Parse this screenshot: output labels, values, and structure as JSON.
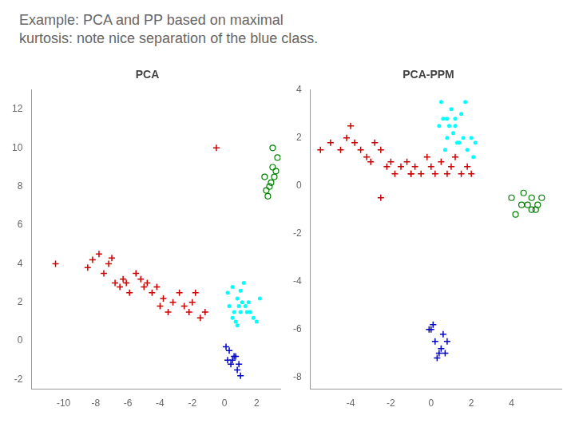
{
  "title": "Example: PCA and PP based on maximal\nkurtosis: note nice separation of the blue class.",
  "chart_data": [
    {
      "type": "scatter",
      "title": "PCA",
      "grid": false,
      "xlim": [
        -12,
        3.5
      ],
      "ylim": [
        -2.5,
        13
      ],
      "xticks": [
        -10,
        -8,
        -6,
        -4,
        -2,
        0,
        2
      ],
      "yticks": [
        -2,
        0,
        2,
        4,
        6,
        8,
        10,
        12
      ],
      "series": [
        {
          "color": "#cc0000",
          "marker": "plus",
          "x": [
            -10.5,
            -8.5,
            -8.2,
            -7.8,
            -7.5,
            -7.2,
            -7.0,
            -6.8,
            -6.5,
            -6.3,
            -6.1,
            -5.9,
            -5.5,
            -5.2,
            -5.0,
            -4.8,
            -4.5,
            -4.2,
            -4.0,
            -3.8,
            -3.5,
            -3.2,
            -2.8,
            -2.5,
            -2.2,
            -2.0,
            -1.8,
            -1.5,
            -1.2,
            -0.5
          ],
          "values": [
            4.0,
            3.8,
            4.2,
            4.5,
            3.5,
            4.0,
            4.3,
            3.0,
            2.8,
            3.2,
            3.0,
            2.5,
            3.5,
            3.2,
            2.8,
            3.0,
            2.5,
            2.8,
            1.8,
            2.2,
            1.5,
            2.0,
            2.5,
            1.8,
            1.5,
            2.0,
            2.5,
            1.2,
            1.5,
            10.0
          ]
        },
        {
          "color": "cyan",
          "marker": "point",
          "x": [
            0.2,
            0.5,
            0.8,
            1.0,
            1.2,
            1.5,
            0.3,
            0.6,
            0.9,
            1.1,
            1.4,
            1.8,
            2.2,
            0.7,
            1.0,
            1.3,
            0.5,
            0.8,
            1.6,
            2.0
          ],
          "values": [
            2.5,
            2.8,
            2.2,
            2.6,
            3.0,
            2.0,
            1.8,
            1.5,
            1.8,
            2.0,
            1.5,
            1.2,
            2.2,
            1.0,
            1.5,
            1.8,
            1.2,
            0.8,
            1.5,
            1.0
          ]
        },
        {
          "color": "#0000cc",
          "marker": "plus",
          "x": [
            0.2,
            0.4,
            0.6,
            0.8,
            1.0,
            0.3,
            0.5,
            0.7,
            0.9,
            0.1
          ],
          "values": [
            -1.0,
            -1.2,
            -0.8,
            -1.5,
            -1.8,
            -0.5,
            -1.0,
            -0.8,
            -1.2,
            -0.3
          ]
        },
        {
          "color": "green",
          "marker": "open_circle",
          "x": [
            2.5,
            2.8,
            3.0,
            3.2,
            2.7,
            2.9,
            3.1,
            2.6,
            3.0,
            3.3
          ],
          "values": [
            8.5,
            8.0,
            9.0,
            8.8,
            7.5,
            8.2,
            8.5,
            7.8,
            10.0,
            9.5
          ]
        }
      ]
    },
    {
      "type": "scatter",
      "title": "PCA-PPM",
      "grid": false,
      "xlim": [
        -6,
        6.5
      ],
      "ylim": [
        -8.5,
        4
      ],
      "xticks": [
        -4,
        -2,
        0,
        2,
        4
      ],
      "yticks": [
        -8,
        -6,
        -4,
        -2,
        0,
        2,
        4
      ],
      "series": [
        {
          "color": "#cc0000",
          "marker": "plus",
          "x": [
            -5.5,
            -5.0,
            -4.5,
            -4.0,
            -3.8,
            -3.5,
            -3.2,
            -3.0,
            -2.8,
            -2.5,
            -2.2,
            -2.0,
            -1.8,
            -1.5,
            -1.2,
            -1.0,
            -0.8,
            -0.5,
            -0.2,
            0.0,
            0.2,
            0.5,
            0.8,
            1.0,
            1.2,
            1.5,
            1.8,
            2.0,
            -4.2,
            -2.5,
            -1.0
          ],
          "values": [
            1.5,
            1.8,
            1.5,
            2.5,
            1.8,
            1.5,
            1.2,
            1.0,
            1.8,
            1.5,
            0.8,
            1.0,
            0.5,
            0.8,
            1.0,
            0.5,
            0.8,
            0.5,
            1.2,
            0.8,
            0.5,
            1.0,
            0.5,
            0.8,
            1.2,
            0.5,
            0.8,
            0.5,
            2.0,
            -0.5,
            0.5
          ]
        },
        {
          "color": "cyan",
          "marker": "point",
          "x": [
            0.5,
            0.8,
            1.0,
            1.2,
            1.5,
            0.6,
            0.9,
            1.1,
            1.4,
            1.8,
            2.0,
            0.7,
            1.2,
            1.6,
            2.2,
            0.4,
            0.8,
            1.3,
            1.7,
            2.1
          ],
          "values": [
            3.5,
            2.8,
            3.2,
            2.5,
            3.0,
            2.8,
            2.5,
            2.2,
            1.8,
            1.5,
            2.0,
            1.5,
            2.8,
            2.0,
            1.8,
            2.5,
            2.0,
            1.8,
            3.5,
            1.2
          ]
        },
        {
          "color": "#0000cc",
          "marker": "plus",
          "x": [
            0.0,
            0.2,
            0.4,
            0.5,
            0.6,
            0.8,
            0.3,
            0.1,
            0.7,
            -0.1
          ],
          "values": [
            -6.0,
            -6.5,
            -7.0,
            -6.8,
            -6.2,
            -6.5,
            -7.2,
            -5.8,
            -7.0,
            -6.0
          ]
        },
        {
          "color": "green",
          "marker": "open_circle",
          "x": [
            4.0,
            4.5,
            5.0,
            5.2,
            4.8,
            5.5,
            4.2,
            5.0,
            4.6,
            5.3
          ],
          "values": [
            -0.5,
            -0.8,
            -0.5,
            -1.0,
            -0.8,
            -0.5,
            -1.2,
            -1.0,
            -0.3,
            -0.8
          ]
        }
      ]
    }
  ]
}
